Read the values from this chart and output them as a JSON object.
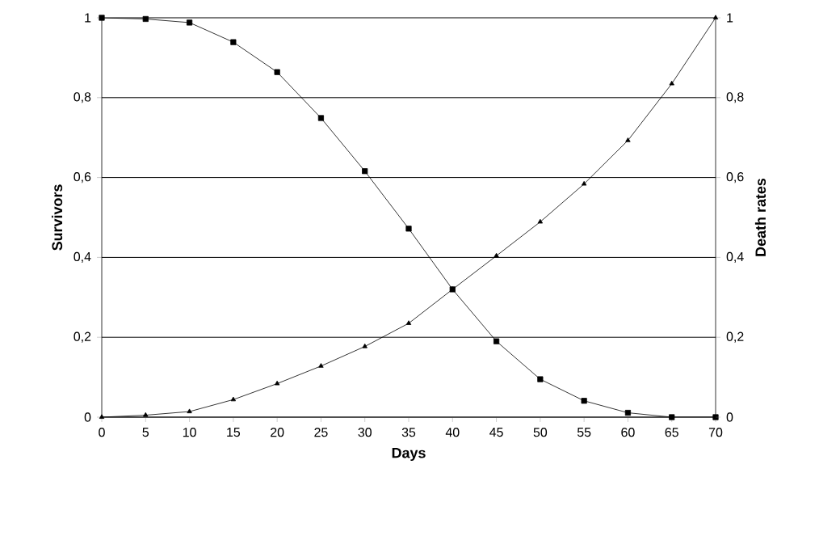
{
  "chart_data": {
    "type": "line",
    "xlabel": "Days",
    "ylabel": "Survivors",
    "y2label": "Death rates",
    "x": [
      0,
      5,
      10,
      15,
      20,
      25,
      30,
      35,
      40,
      45,
      50,
      55,
      60,
      65,
      70
    ],
    "series": [
      {
        "color": "#000000",
        "marker": "square",
        "values": [
          1,
          0.997,
          0.988,
          0.939,
          0.864,
          0.749,
          0.616,
          0.472,
          0.32,
          0.19,
          0.095,
          0.041,
          0.011,
          0,
          0
        ]
      },
      {
        "color": "#000000",
        "marker": "triangle",
        "axis": "y2",
        "values": [
          0,
          0.005,
          0.014,
          0.044,
          0.084,
          0.128,
          0.177,
          0.235,
          0.32,
          0.404,
          0.489,
          0.584,
          0.693,
          0.835,
          1
        ]
      }
    ],
    "xlim": [
      0,
      70
    ],
    "xticks": [
      0,
      5,
      10,
      15,
      20,
      25,
      30,
      35,
      40,
      45,
      50,
      55,
      60,
      65,
      70
    ],
    "ylim": [
      0,
      1
    ],
    "yticks": [
      {
        "value": 0,
        "label": "0"
      },
      {
        "value": 0.2,
        "label": "0,2"
      },
      {
        "value": 0.4,
        "label": "0,4"
      },
      {
        "value": 0.6,
        "label": "0,6"
      },
      {
        "value": 0.8,
        "label": "0,8"
      },
      {
        "value": 1,
        "label": "1"
      }
    ],
    "y2lim": [
      0,
      1
    ],
    "y2ticks": [
      {
        "value": 0,
        "label": "0"
      },
      {
        "value": 0.2,
        "label": "0,2"
      },
      {
        "value": 0.4,
        "label": "0,4"
      },
      {
        "value": 0.6,
        "label": "0,6"
      },
      {
        "value": 0.8,
        "label": "0,8"
      },
      {
        "value": 1,
        "label": "1"
      }
    ],
    "grid": "y",
    "line_style": "solid"
  }
}
